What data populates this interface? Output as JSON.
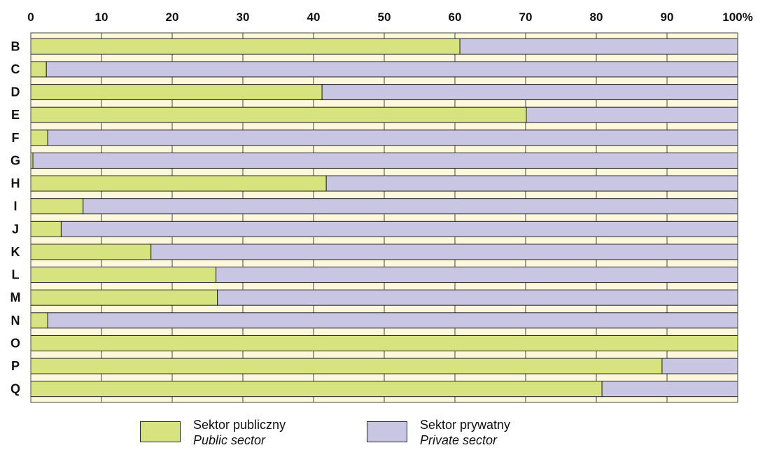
{
  "chart_data": {
    "type": "bar",
    "orientation": "horizontal",
    "stacked": true,
    "categories": [
      "B",
      "C",
      "D",
      "E",
      "F",
      "G",
      "H",
      "I",
      "J",
      "K",
      "L",
      "M",
      "N",
      "O",
      "P",
      "Q"
    ],
    "series": [
      {
        "name": "Sektor publiczny / Public sector",
        "color": "#d6e37e",
        "values": [
          60.7,
          2.2,
          41.2,
          70.1,
          2.4,
          0.3,
          41.8,
          7.4,
          4.3,
          17.0,
          26.2,
          26.4,
          2.4,
          100.0,
          89.3,
          80.8
        ]
      },
      {
        "name": "Sektor prywatny / Private sector",
        "color": "#c8c6e2",
        "values": [
          39.3,
          97.8,
          58.8,
          29.9,
          97.6,
          99.7,
          58.2,
          92.6,
          95.7,
          83.0,
          73.8,
          73.6,
          97.6,
          0.0,
          10.7,
          19.2
        ]
      }
    ],
    "xlim": [
      0,
      100
    ],
    "x_ticks": [
      "0",
      "10",
      "20",
      "30",
      "40",
      "50",
      "60",
      "70",
      "80",
      "90",
      "100%"
    ],
    "grid": true,
    "legend_position": "bottom",
    "title": "",
    "xlabel": "",
    "ylabel": ""
  },
  "legend": [
    {
      "label_pl": "Sektor publiczny",
      "label_en": "Public sector",
      "color": "#d6e37e"
    },
    {
      "label_pl": "Sektor prywatny",
      "label_en": "Private sector",
      "color": "#c8c6e2"
    }
  ],
  "colors": {
    "plot_background": "#fdf8dc",
    "grid": "#444444",
    "bar_border": "#222222"
  }
}
